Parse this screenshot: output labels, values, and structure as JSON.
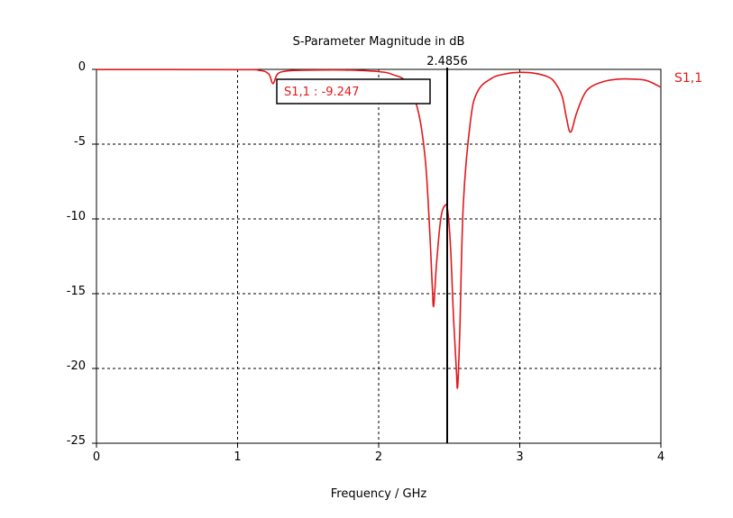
{
  "chart_data": {
    "type": "line",
    "title": "S-Parameter Magnitude in dB",
    "xlabel": "Frequency / GHz",
    "ylabel": "",
    "xlim": [
      0,
      4
    ],
    "ylim": [
      -25,
      0
    ],
    "x_ticks": [
      "0",
      "1",
      "2",
      "3",
      "4"
    ],
    "y_ticks": [
      "0",
      "-5",
      "-10",
      "-15",
      "-20",
      "-25"
    ],
    "grid": true,
    "legend_position": "right",
    "series": [
      {
        "name": "S1,1",
        "color": "#e0191e",
        "x": [
          0,
          1.0,
          1.15,
          1.22,
          1.25,
          1.28,
          1.32,
          1.4,
          1.6,
          1.8,
          2.0,
          2.1,
          2.2,
          2.28,
          2.33,
          2.36,
          2.38,
          2.39,
          2.41,
          2.44,
          2.47,
          2.49,
          2.51,
          2.53,
          2.55,
          2.56,
          2.575,
          2.6,
          2.65,
          2.7,
          2.8,
          2.9,
          3.0,
          3.1,
          3.2,
          3.25,
          3.3,
          3.33,
          3.36,
          3.4,
          3.45,
          3.5,
          3.6,
          3.7,
          3.8,
          3.9,
          4.0
        ],
        "y": [
          -0.01,
          -0.02,
          -0.06,
          -0.3,
          -0.95,
          -0.35,
          -0.15,
          -0.07,
          -0.04,
          -0.05,
          -0.15,
          -0.35,
          -0.9,
          -2.8,
          -6.0,
          -10.5,
          -14.5,
          -15.8,
          -13.0,
          -10.0,
          -9.1,
          -9.5,
          -12.0,
          -16.5,
          -20.0,
          -21.2,
          -17.5,
          -9.0,
          -3.5,
          -1.5,
          -0.6,
          -0.3,
          -0.2,
          -0.25,
          -0.5,
          -0.9,
          -1.8,
          -3.2,
          -4.2,
          -3.0,
          -1.8,
          -1.2,
          -0.8,
          -0.65,
          -0.65,
          -0.75,
          -1.2
        ]
      }
    ],
    "marker": {
      "x": 2.4856,
      "label": "2.4856",
      "readout": "S1,1 : -9.247"
    }
  }
}
